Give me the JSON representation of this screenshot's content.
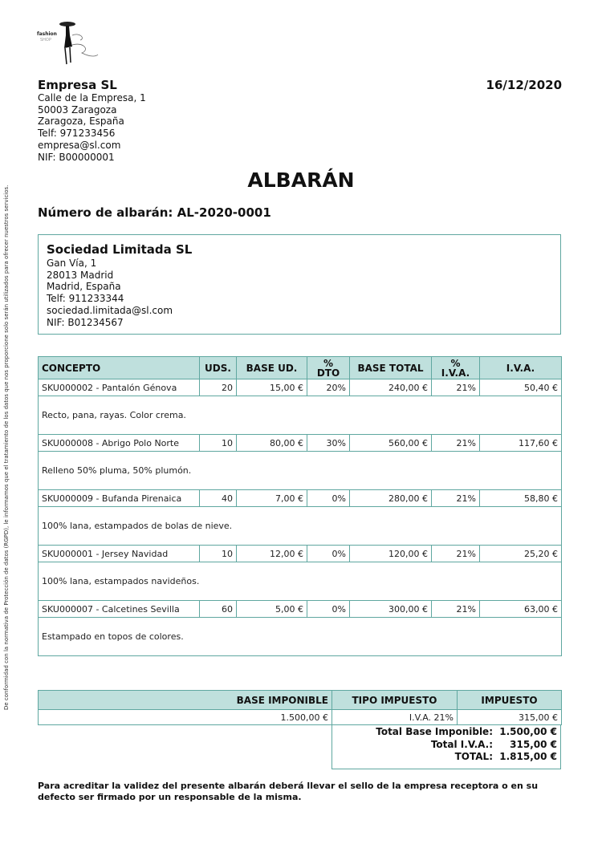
{
  "logo": {
    "text": "fashion SHOP"
  },
  "company": {
    "name": "Empresa SL",
    "address": "Calle de la Empresa, 1",
    "city": "50003 Zaragoza",
    "region": "Zaragoza, España",
    "phone": "Telf: 971233456",
    "email": "empresa@sl.com",
    "nif": "NIF: B00000001"
  },
  "date": "16/12/2020",
  "title": "ALBARÁN",
  "doc_number": "Número de albarán: AL-2020-0001",
  "client": {
    "name": "Sociedad Limitada SL",
    "address": "Gan Vía, 1",
    "city": "28013 Madrid",
    "region": "Madrid, España",
    "phone": "Telf: 911233344",
    "email": "sociedad.limitada@sl.com",
    "nif": "NIF: B01234567"
  },
  "side_note": "De conformidad con la normativa de Protección de datos (RGPD), le informamos que el tratamiento de los datos que nos proporcione solo serán utilizados para ofrecer nuestros servicios.",
  "items_table": {
    "headers": [
      "CONCEPTO",
      "UDS.",
      "BASE UD.",
      "% DTO",
      "BASE TOTAL",
      "% I.V.A.",
      "I.V.A."
    ],
    "rows": [
      {
        "concept": "SKU000002 - Pantalón Génova",
        "units": "20",
        "base_unit": "15,00 €",
        "discount": "20%",
        "base_total": "240,00 €",
        "vat_pct": "21%",
        "vat": "50,40 €",
        "description": "Recto, pana, rayas. Color crema."
      },
      {
        "concept": "SKU000008 - Abrigo Polo Norte",
        "units": "10",
        "base_unit": "80,00 €",
        "discount": "30%",
        "base_total": "560,00 €",
        "vat_pct": "21%",
        "vat": "117,60 €",
        "description": "Relleno 50% pluma, 50% plumón."
      },
      {
        "concept": "SKU000009 - Bufanda Pirenaica",
        "units": "40",
        "base_unit": "7,00 €",
        "discount": "0%",
        "base_total": "280,00 €",
        "vat_pct": "21%",
        "vat": "58,80 €",
        "description": "100% lana, estampados de bolas de nieve."
      },
      {
        "concept": "SKU000001 - Jersey Navidad",
        "units": "10",
        "base_unit": "12,00 €",
        "discount": "0%",
        "base_total": "120,00 €",
        "vat_pct": "21%",
        "vat": "25,20 €",
        "description": "100% lana, estampados navideños."
      },
      {
        "concept": "SKU000007 - Calcetines Sevilla",
        "units": "60",
        "base_unit": "5,00 €",
        "discount": "0%",
        "base_total": "300,00 €",
        "vat_pct": "21%",
        "vat": "63,00 €",
        "description": "Estampado en topos de colores."
      }
    ]
  },
  "tax_table": {
    "headers": [
      "BASE IMPONIBLE",
      "TIPO IMPUESTO",
      "IMPUESTO"
    ],
    "row": [
      "1.500,00 €",
      "I.V.A. 21%",
      "315,00 €"
    ]
  },
  "totals": [
    {
      "label": "Total Base Imponible:",
      "value": "1.500,00 €"
    },
    {
      "label": "Total I.V.A.:",
      "value": "315,00 €"
    },
    {
      "label": "TOTAL:",
      "value": "1.815,00 €"
    }
  ],
  "footer": "Para acreditar la validez del presente albarán deberá llevar el sello de la empresa receptora o en su defecto ser firmado por un responsable de la misma.",
  "colors": {
    "border": "#5fa7a0",
    "header_bg": "#bfe0dd"
  }
}
